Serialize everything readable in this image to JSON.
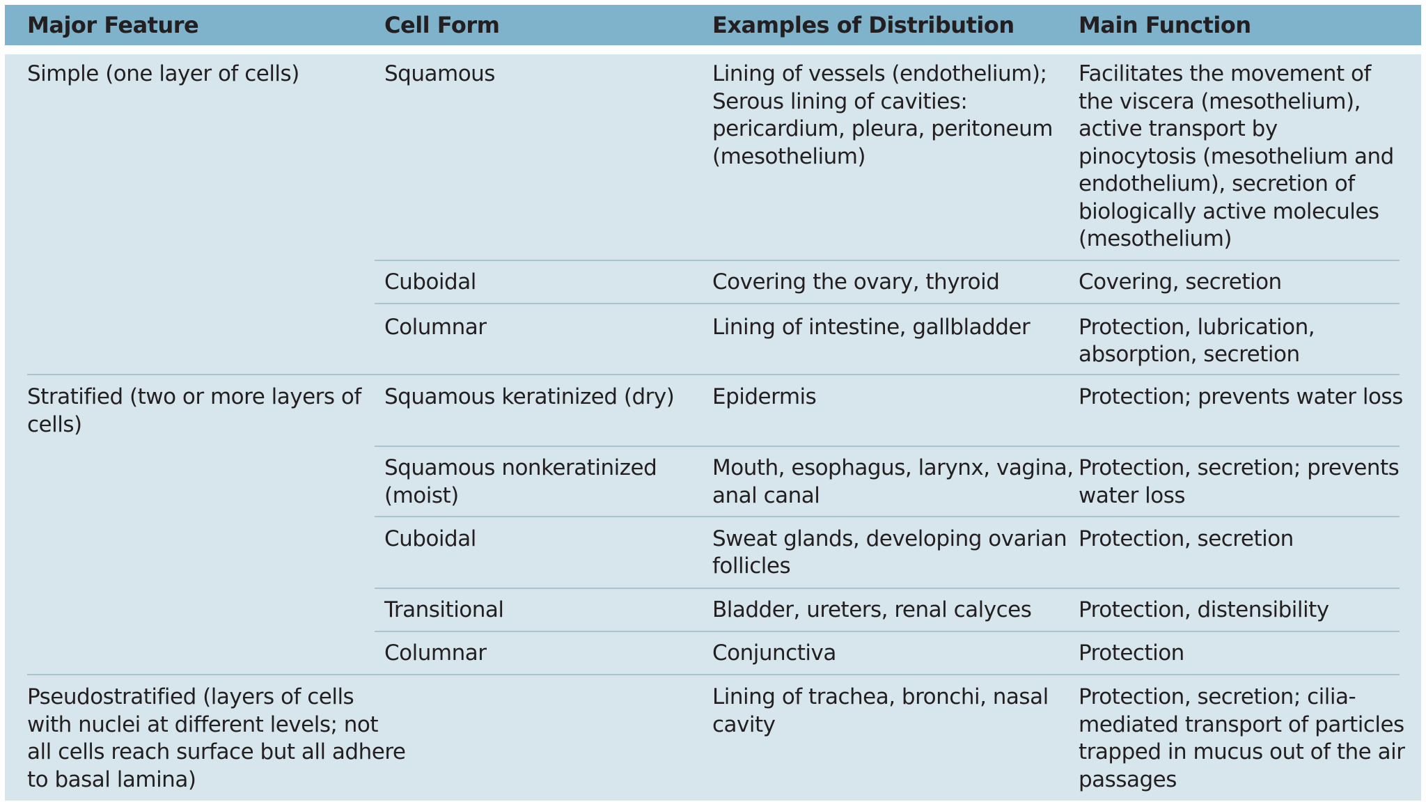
{
  "headers": [
    "Major Feature",
    "Cell Form",
    "Examples of Distribution",
    "Main Function"
  ],
  "rows": [
    {
      "feature": [
        "Simple (one layer of cells)"
      ],
      "form": [
        "Squamous"
      ],
      "examples": [
        "Lining of vessels (endothelium);",
        "Serous lining of cavities:",
        "pericardium, pleura, peritoneum",
        "(mesothelium)"
      ],
      "function": [
        "Facilitates the movement of",
        "the viscera (mesothelium),",
        "active transport by",
        "pinocytosis (mesothelium and",
        "endothelium), secretion of",
        "biologically active molecules",
        "(mesothelium)"
      ]
    },
    {
      "feature": [],
      "form": [
        "Cuboidal"
      ],
      "examples": [
        "Covering the ovary, thyroid"
      ],
      "function": [
        "Covering, secretion"
      ]
    },
    {
      "feature": [],
      "form": [
        "Columnar"
      ],
      "examples": [
        "Lining of intestine, gallbladder"
      ],
      "function": [
        "Protection, lubrication,",
        "absorption, secretion"
      ]
    },
    {
      "feature": [
        "Stratified (two or more layers of",
        "cells)"
      ],
      "form": [
        "Squamous keratinized (dry)"
      ],
      "examples": [
        "Epidermis"
      ],
      "function": [
        "Protection; prevents water loss"
      ]
    },
    {
      "feature": [],
      "form": [
        "Squamous nonkeratinized",
        "(moist)"
      ],
      "examples": [
        "Mouth, esophagus, larynx, vagina,",
        "anal canal"
      ],
      "function": [
        "Protection, secretion; prevents",
        "water loss"
      ]
    },
    {
      "feature": [],
      "form": [
        "Cuboidal"
      ],
      "examples": [
        "Sweat glands, developing ovarian",
        "follicles"
      ],
      "function": [
        "Protection, secretion"
      ]
    },
    {
      "feature": [],
      "form": [
        "Transitional"
      ],
      "examples": [
        "Bladder, ureters, renal calyces"
      ],
      "function": [
        "Protection, distensibility"
      ]
    },
    {
      "feature": [],
      "form": [
        "Columnar"
      ],
      "examples": [
        "Conjunctiva"
      ],
      "function": [
        "Protection"
      ]
    },
    {
      "feature": [
        "Pseudostratified (layers of cells",
        "with nuclei at different levels; not",
        "all cells reach surface but all adhere",
        "to basal lamina)"
      ],
      "form": [],
      "examples": [
        "Lining of trachea, bronchi, nasal",
        "cavity"
      ],
      "function": [
        "Protection, secretion; cilia-",
        "mediated transport of particles",
        "trapped in mucus out of the air",
        "passages"
      ]
    }
  ]
}
